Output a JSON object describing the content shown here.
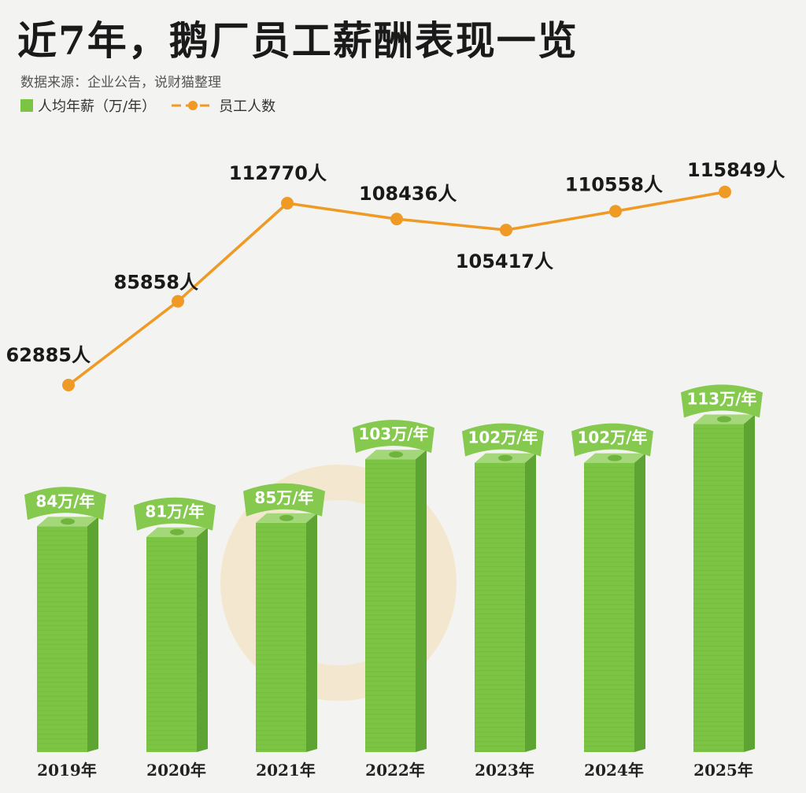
{
  "title": "近7年，鹅厂员工薪酬表现一览",
  "source": "数据来源：企业公告，说财猫整理",
  "legend": {
    "salary": "人均年薪（万/年）",
    "employees": "员工人数"
  },
  "colors": {
    "bar": "#7cc444",
    "line": "#ef9a24",
    "title": "#1a1a1a"
  },
  "chart_data": {
    "type": "bar+line",
    "categories": [
      "2019年",
      "2020年",
      "2021年",
      "2022年",
      "2023年",
      "2024年",
      "2025年"
    ],
    "series": [
      {
        "name": "人均年薪（万/年）",
        "type": "bar",
        "values": [
          84,
          81,
          85,
          103,
          102,
          102,
          113
        ],
        "labels": [
          "84万/年",
          "81万/年",
          "85万/年",
          "103万/年",
          "102万/年",
          "102万/年",
          "113万/年"
        ]
      },
      {
        "name": "员工人数",
        "type": "line",
        "values": [
          62885,
          85858,
          112770,
          108436,
          105417,
          110558,
          115849
        ],
        "labels": [
          "62885人",
          "85858人",
          "112770人",
          "108436人",
          "105417人",
          "110558人",
          "115849人"
        ]
      }
    ],
    "grid": false,
    "legend_position": "top-left"
  }
}
